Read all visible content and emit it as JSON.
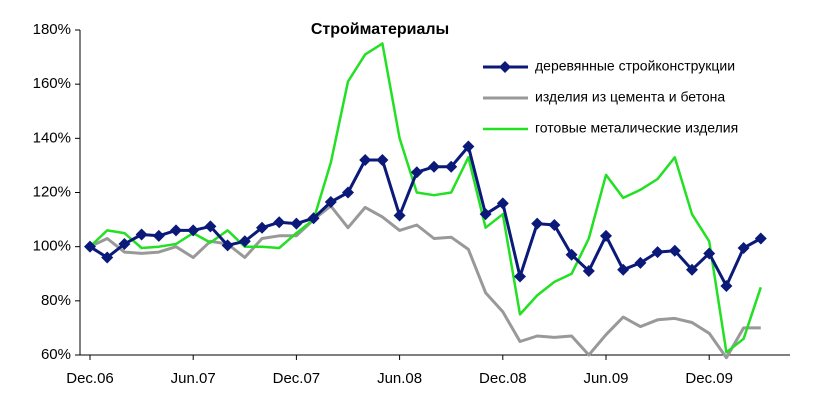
{
  "chart_data": {
    "type": "line",
    "title": "Стройматериалы",
    "categories": [
      "Dec.06",
      null,
      null,
      null,
      null,
      null,
      "Jun.07",
      null,
      null,
      null,
      null,
      null,
      "Dec.07",
      null,
      null,
      null,
      null,
      null,
      "Jun.08",
      null,
      null,
      null,
      null,
      null,
      "Dec.08",
      null,
      null,
      null,
      null,
      null,
      "Jun.09",
      null,
      null,
      null,
      null,
      null,
      "Dec.09",
      null,
      null,
      null
    ],
    "series": [
      {
        "name": "деревянные стройконструкции",
        "color": "#0b1a78",
        "values": [
          100,
          96,
          101,
          104.5,
          104,
          106,
          106,
          107.5,
          100.5,
          102,
          107,
          109,
          108.5,
          110.5,
          116.5,
          120,
          132,
          132,
          111.5,
          127.5,
          129.5,
          129.5,
          137,
          112,
          116,
          89,
          108.5,
          108,
          97,
          91,
          104,
          91.5,
          94,
          98,
          98.5,
          91.5,
          97.5,
          85.5,
          99.5,
          103
        ]
      },
      {
        "name": "изделия из цемента и бетона",
        "color": "#999999",
        "values": [
          100,
          103,
          98,
          97.5,
          98,
          100,
          96,
          102,
          101,
          96,
          103,
          104,
          104,
          110,
          115,
          107,
          114.5,
          111,
          106,
          108,
          103,
          103.5,
          99,
          83,
          76,
          65,
          67,
          66.5,
          67,
          60,
          67.5,
          74,
          70.5,
          73,
          73.5,
          72,
          68,
          59,
          70,
          70
        ]
      },
      {
        "name": "готовые металические изделия",
        "color": "#22e022",
        "values": [
          100,
          106,
          105,
          99.5,
          100,
          101,
          105,
          101.5,
          106,
          100,
          100,
          99.5,
          105,
          110,
          131,
          161,
          171,
          175,
          140,
          120,
          119,
          120,
          133,
          107,
          112,
          75,
          82,
          87,
          90,
          103,
          126.5,
          118,
          121,
          125,
          133,
          112,
          102,
          61,
          66,
          85
        ]
      }
    ],
    "ylim": [
      60,
      180
    ],
    "yticks": [
      {
        "value": 60,
        "label": "60%"
      },
      {
        "value": 80,
        "label": "80%"
      },
      {
        "value": 100,
        "label": "100%"
      },
      {
        "value": 120,
        "label": "120%"
      },
      {
        "value": 140,
        "label": "140%"
      },
      {
        "value": 160,
        "label": "160%"
      },
      {
        "value": 180,
        "label": "180%"
      }
    ],
    "grid": false,
    "legend": "upper right"
  }
}
